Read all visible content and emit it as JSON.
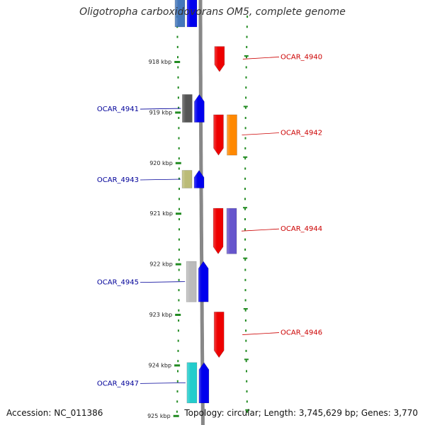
{
  "title": "Oligotropha carboxidovorans OM5, complete genome",
  "footer": {
    "accession": "Accession: NC_011386",
    "info": "Topology: circular; Length: 3,745,629 bp; Genes: 3,770"
  },
  "ruler": {
    "unit": "kbp",
    "ticks": [
      {
        "value": 918,
        "label": "918 kbp"
      },
      {
        "value": 919,
        "label": "919 kbp"
      },
      {
        "value": 920,
        "label": "920 kbp"
      },
      {
        "value": 921,
        "label": "921 kbp"
      },
      {
        "value": 922,
        "label": "922 kbp"
      },
      {
        "value": 923,
        "label": "923 kbp"
      },
      {
        "value": 924,
        "label": "924 kbp"
      },
      {
        "value": 925,
        "label": "925 kbp"
      }
    ]
  },
  "genes": [
    {
      "id": "OCAR_4940",
      "strand": "+",
      "start": 917.7,
      "end": 918.2,
      "label_color": "#cc0000"
    },
    {
      "id": "OCAR_4941",
      "strand": "-",
      "start": 918.65,
      "end": 919.2,
      "label_color": "#000099"
    },
    {
      "id": "OCAR_4942",
      "strand": "+",
      "start": 919.05,
      "end": 919.85,
      "label_color": "#cc0000"
    },
    {
      "id": "OCAR_4943",
      "strand": "-",
      "start": 920.15,
      "end": 920.5,
      "label_color": "#000099"
    },
    {
      "id": "OCAR_4944",
      "strand": "+",
      "start": 920.9,
      "end": 921.8,
      "label_color": "#cc0000"
    },
    {
      "id": "OCAR_4945",
      "strand": "-",
      "start": 921.95,
      "end": 922.75,
      "label_color": "#000099"
    },
    {
      "id": "OCAR_4946",
      "strand": "+",
      "start": 922.95,
      "end": 923.85,
      "label_color": "#cc0000"
    },
    {
      "id": "OCAR_4947",
      "strand": "-",
      "start": 923.95,
      "end": 924.75,
      "label_color": "#000099"
    }
  ],
  "colors": {
    "forward_arrow": "#ee0000",
    "reverse_arrow": "#0000ee",
    "backbone": "#888888",
    "ruler_dots": "#228b22",
    "cog_boxes": [
      "#4477bb",
      "#555555",
      "#ff8800",
      "#bbbb77",
      "#6655cc",
      "#bbbbbb",
      "#22cccc"
    ]
  }
}
